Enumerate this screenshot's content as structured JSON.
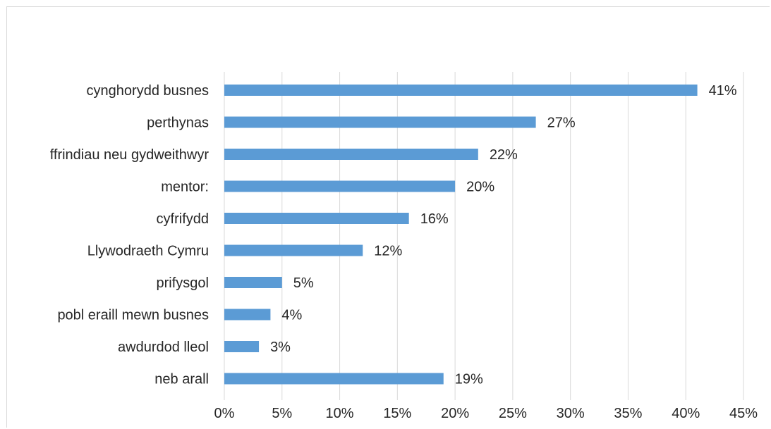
{
  "chart_data": {
    "type": "bar",
    "orientation": "horizontal",
    "categories": [
      "cynghorydd busnes",
      "perthynas",
      "ffrindiau neu gydweithwyr",
      "mentor:",
      "cyfrifydd",
      "Llywodraeth Cymru",
      "prifysgol",
      "pobl eraill mewn busnes",
      "awdurdod lleol",
      "neb arall"
    ],
    "values": [
      41,
      27,
      22,
      20,
      16,
      12,
      5,
      4,
      3,
      19
    ],
    "value_labels": [
      "41%",
      "27%",
      "22%",
      "20%",
      "16%",
      "12%",
      "5%",
      "4%",
      "3%",
      "19%"
    ],
    "x_ticks": [
      0,
      5,
      10,
      15,
      20,
      25,
      30,
      35,
      40,
      45
    ],
    "x_tick_labels": [
      "0%",
      "5%",
      "10%",
      "15%",
      "20%",
      "25%",
      "30%",
      "35%",
      "40%",
      "45%"
    ],
    "xlim": [
      0,
      45
    ],
    "grid": "vertical",
    "bar_color": "#5b9bd5",
    "grid_color": "#d9d9d9",
    "text_color": "#262626"
  }
}
